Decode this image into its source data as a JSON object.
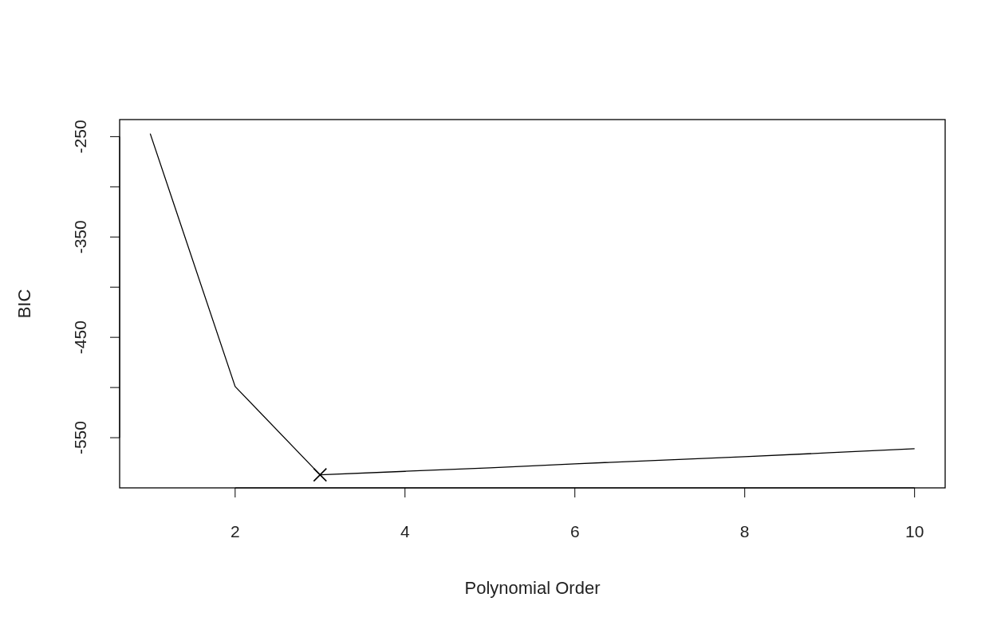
{
  "chart_data": {
    "type": "line",
    "xlabel": "Polynomial Order",
    "ylabel": "BIC",
    "xlim": [
      0.64,
      10.36
    ],
    "xticks": [
      2,
      4,
      6,
      8,
      10
    ],
    "ylim": [
      -600,
      -233
    ],
    "yticks": [
      -250,
      {
        "value": -300,
        "label": null
      },
      -350,
      {
        "value": -400,
        "label": null
      },
      -450,
      {
        "value": -500,
        "label": null
      },
      -550
    ],
    "series": [
      {
        "color": "#000000",
        "x": [
          1,
          2,
          3,
          4,
          5,
          6,
          7,
          8,
          9,
          10
        ],
        "values": [
          -247,
          -499,
          -587,
          -583.5,
          -580,
          -576,
          -572.5,
          -569,
          -565,
          -561
        ]
      },
      {
        "type": "scatter",
        "color": "#000000",
        "marker": "cross",
        "x": [
          3
        ],
        "values": [
          -587
        ]
      }
    ]
  }
}
